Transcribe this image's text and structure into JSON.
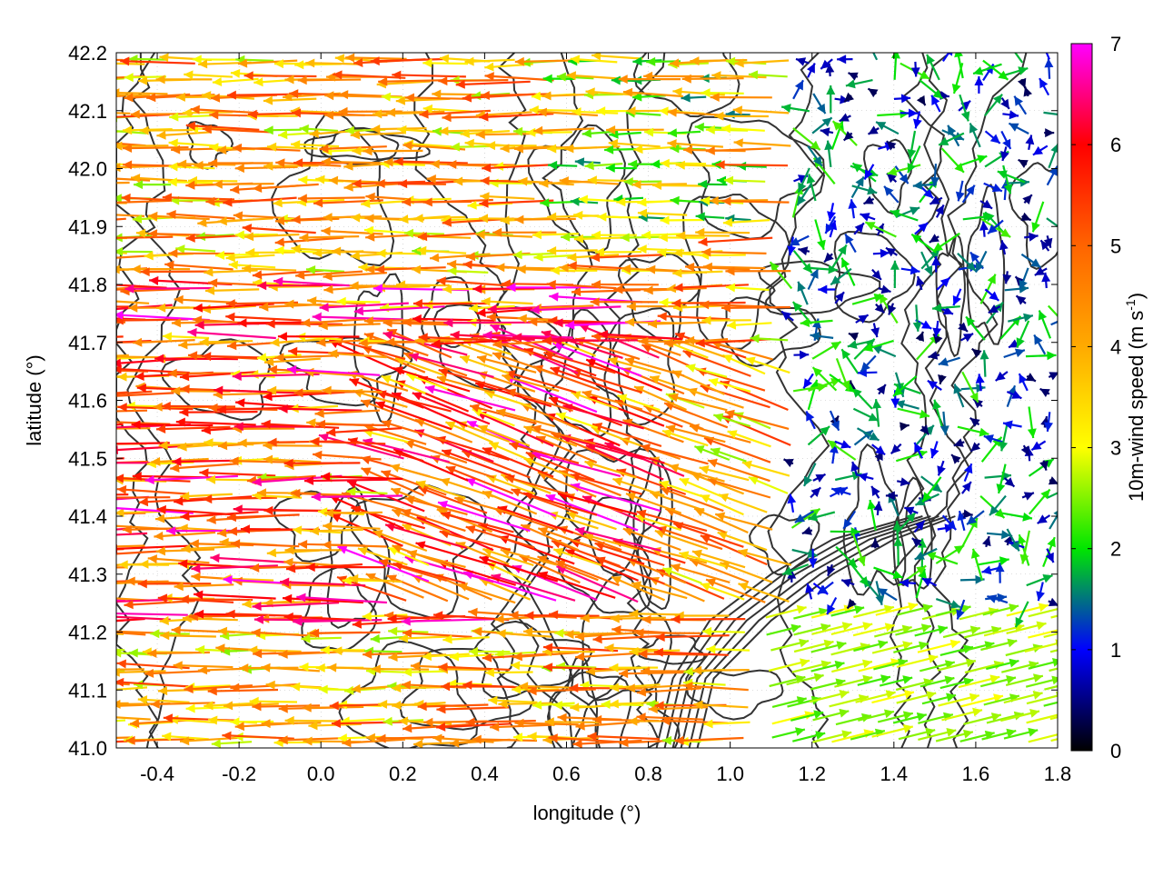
{
  "chart_data": {
    "type": "vector-field",
    "xlabel": "longitude (°)",
    "ylabel": "latitude (°)",
    "xlim": [
      -0.5,
      1.8
    ],
    "ylim": [
      41.0,
      42.2
    ],
    "x_ticks": [
      -0.4,
      -0.2,
      0.0,
      0.2,
      0.4,
      0.6,
      0.8,
      1.0,
      1.2,
      1.4,
      1.6,
      1.8
    ],
    "x_tick_labels": [
      "-0.4",
      "-0.2",
      "0.0",
      "0.2",
      "0.4",
      "0.6",
      "0.8",
      "1.0",
      "1.2",
      "1.4",
      "1.6",
      "1.8"
    ],
    "y_ticks": [
      41.0,
      41.1,
      41.2,
      41.3,
      41.4,
      41.5,
      41.6,
      41.7,
      41.8,
      41.9,
      42.0,
      42.1,
      42.2
    ],
    "y_tick_labels": [
      "41.0",
      "41.1",
      "41.2",
      "41.3",
      "41.4",
      "41.5",
      "41.6",
      "41.7",
      "41.8",
      "41.9",
      "42.0",
      "42.1",
      "42.2"
    ],
    "grid": true,
    "colorbar": {
      "label": "10m-wind speed (m s",
      "label_superscript": "-1",
      "label_suffix": ")",
      "range": [
        0,
        7
      ],
      "ticks": [
        0,
        1,
        2,
        3,
        4,
        5,
        6,
        7
      ],
      "tick_labels": [
        "0",
        "1",
        "2",
        "3",
        "4",
        "5",
        "6",
        "7"
      ],
      "colors": [
        "#000000",
        "#0000ff",
        "#00ff00",
        "#ffff00",
        "#ffa500",
        "#ff0000",
        "#ff00ff"
      ]
    },
    "contour_color": "#333333",
    "wind_field_summary": {
      "west_of_1.0E": "strong easterly flow (3–7 m/s), arrows point west",
      "east_of_1.2E_north_of_41.3N": "weak variable winds (0–2 m/s)",
      "southeast_corner": "westerly/southwesterly flow (~2.5 m/s)"
    }
  }
}
